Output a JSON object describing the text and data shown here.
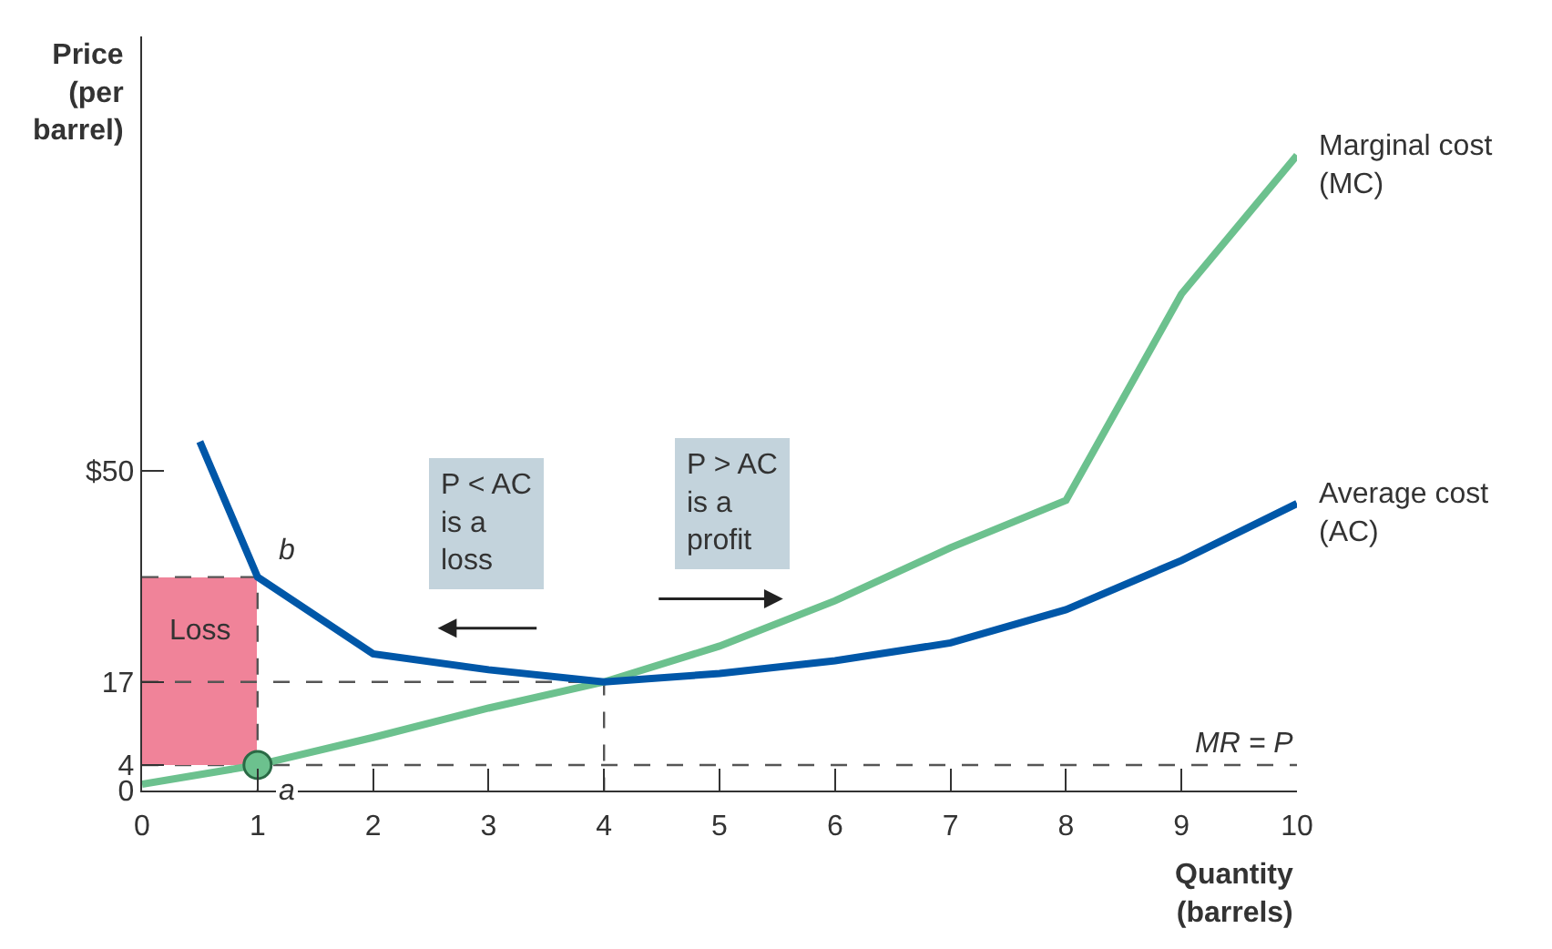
{
  "chart_data": {
    "type": "line",
    "xlabel": "Quantity\n(barrels)",
    "ylabel": "Price\n(per\nbarrel)",
    "xlim": [
      0,
      10
    ],
    "ylim": [
      0,
      118
    ],
    "xticks": [
      0,
      1,
      2,
      3,
      4,
      5,
      6,
      7,
      8,
      9,
      10
    ],
    "yticks": [
      0,
      4,
      17,
      {
        "value": 50,
        "label": "$50"
      }
    ],
    "grid": false,
    "marker": "none",
    "series": [
      {
        "name": "Marginal cost\n(MC)",
        "color": "#6cc18e",
        "x": [
          0,
          1,
          2,
          3,
          4,
          5,
          6,
          7,
          8,
          9,
          10
        ],
        "values": [
          1,
          4,
          8.3,
          12.9,
          17,
          22.6,
          29.7,
          38,
          45.4,
          77.7,
          99.4
        ]
      },
      {
        "name": "Average cost\n(AC)",
        "color": "#0057a8",
        "x": [
          0.5,
          1,
          2,
          3,
          4,
          5,
          6,
          7,
          8,
          9,
          10
        ],
        "values": [
          54.6,
          33.4,
          21.4,
          18.9,
          17,
          18.3,
          20.3,
          23.1,
          28.3,
          36,
          44.9
        ]
      },
      {
        "type": "bar",
        "color": "#f08399",
        "x": [
          0.5
        ],
        "values": [
          29.4
        ],
        "base": [
          4
        ]
      },
      {
        "type": "line",
        "color": "#555555",
        "line_style": "dashed",
        "x": [
          0,
          4,
          4
        ],
        "values": [
          17,
          17,
          0
        ]
      },
      {
        "type": "line",
        "color": "#555555",
        "line_style": "dashed",
        "x": [
          0,
          1,
          1
        ],
        "values": [
          33.4,
          33.4,
          0
        ]
      },
      {
        "type": "scatter",
        "color": "#6cc18e",
        "marker": "circle",
        "x": [
          1
        ],
        "values": [
          4
        ]
      }
    ],
    "ref_lines": [
      {
        "axis": "y",
        "value": 4,
        "label": "MR = P",
        "color": "#555555",
        "line_style": "dashed"
      }
    ],
    "annotations": [
      {
        "text": "a",
        "x": 1,
        "y": 4
      },
      {
        "text": "b",
        "x": 1,
        "y": 33.4
      },
      "Loss",
      "P < AC\nis a\nloss",
      "P > AC\nis a\nprofit"
    ]
  }
}
